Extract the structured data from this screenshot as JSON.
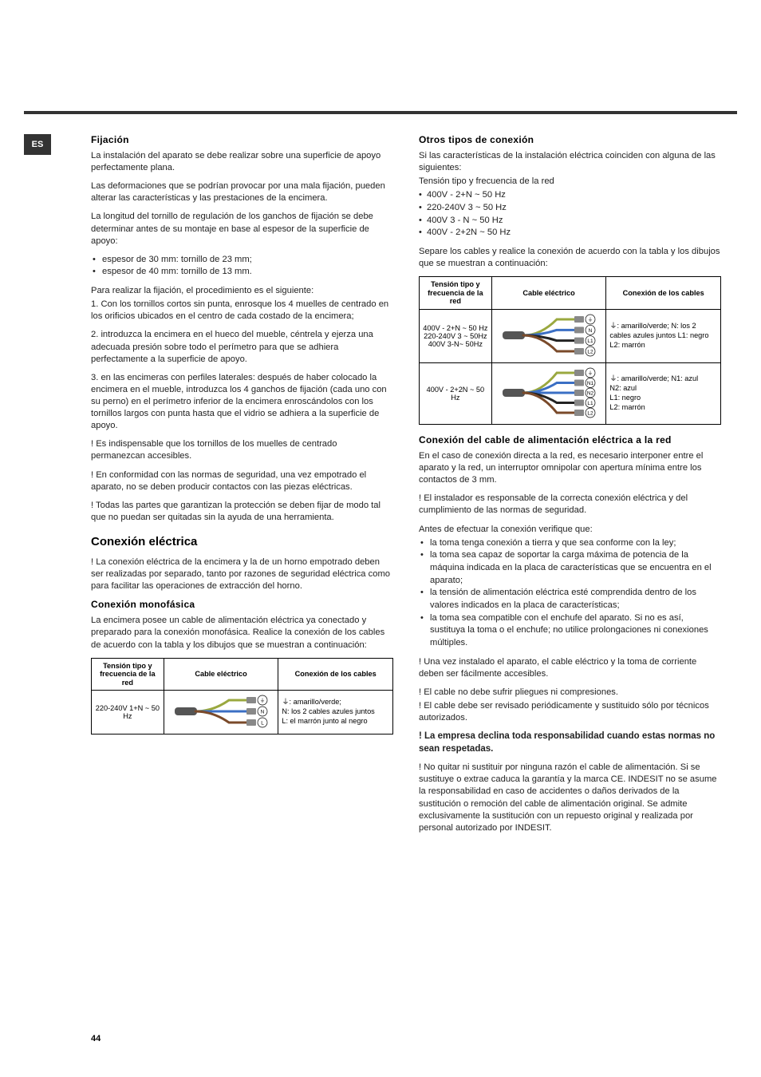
{
  "lang": "ES",
  "pageNumber": "44",
  "left": {
    "h_fijacion": "Fijación",
    "p1": "La instalación del aparato se debe realizar sobre una superficie de apoyo perfectamente plana.",
    "p2": "Las deformaciones que se podrían provocar por una mala fijación, pueden alterar las características y las prestaciones de la encimera.",
    "p3": "La longitud del tornillo de regulación de los ganchos de fijación se debe determinar antes de su montaje en base al espesor de la superficie de apoyo:",
    "li1": "espesor de 30 mm: tornillo de 23 mm;",
    "li2": "espesor de 40 mm: tornillo de 13 mm.",
    "p4": "Para realizar la fijación, el procedimiento es el siguiente:",
    "p5": "1. Con los tornillos cortos sin punta, enrosque los 4 muelles de centrado en los orificios ubicados en el centro de cada costado de la encimera;",
    "p6": "2. introduzca la encimera en el hueco del mueble, céntrela y ejerza una adecuada presión sobre todo el perímetro para que se adhiera perfectamente a la superficie de apoyo.",
    "p7": "3. en las encimeras con perfiles laterales: después de haber colocado la encimera en el mueble, introduzca los 4 ganchos de fijación (cada uno con su perno) en el perímetro inferior de la encimera enroscándolos con los tornillos largos con punta hasta que el vidrio se adhiera a la superficie de apoyo.",
    "w1": "! Es indispensable que los tornillos de los muelles de centrado permanezcan accesibles.",
    "w2": "! En conformidad con las normas de seguridad, una vez empotrado el aparato, no se deben producir contactos con las piezas eléctricas.",
    "w3": "! Todas las partes que garantizan la protección se deben fijar de modo tal que no puedan ser quitadas sin la ayuda de una herramienta.",
    "h_conexion": "Conexión eléctrica",
    "p8": "! La conexión eléctrica de la encimera y la de un horno empotrado deben ser realizadas por separado, tanto por razones de seguridad eléctrica como para facilitar las operaciones de extracción del horno.",
    "h_mono": "Conexión monofásica",
    "p9": "La encimera posee un cable de alimentación eléctrica ya conectado y preparado para la conexión monofásica. Realice la conexión de los cables de acuerdo con la tabla y los dibujos que se muestran a continuación:",
    "table1": {
      "th1": "Tensión tipo y frecuencia de la red",
      "th2": "Cable eléctrico",
      "th3": "Conexión de los cables",
      "row1_freq": "220-240V 1+N ~ 50 Hz",
      "row1_conn": "⏚: amarillo/verde;\nN: los 2 cables azules juntos\nL: el marrón junto al negro"
    }
  },
  "right": {
    "h_otros": "Otros tipos de conexión",
    "p1": "Si las características de la instalación eléctrica coinciden con alguna de las siguientes:",
    "p2": "Tensión tipo y frecuencia de la red",
    "li1": "400V - 2+N ~ 50 Hz",
    "li2": "220-240V 3 ~ 50 Hz",
    "li3": "400V 3 - N ~ 50 Hz",
    "li4": "400V - 2+2N ~ 50 Hz",
    "p3": "Separe los cables y realice la conexión de acuerdo con la tabla y los dibujos que se muestran a continuación:",
    "table2": {
      "th1": "Tensión tipo y frecuencia de la red",
      "th2": "Cable eléctrico",
      "th3": "Conexión de los cables",
      "row1_freq": "400V - 2+N ~ 50 Hz\n220-240V 3 ~ 50Hz\n400V 3-N~ 50Hz",
      "row1_conn": "⏚: amarillo/verde; N: los 2 cables azules juntos L1: negro L2: marrón",
      "row2_freq": "400V - 2+2N ~ 50 Hz",
      "row2_conn": "⏚: amarillo/verde; N1: azul\nN2: azul\nL1: negro\nL2: marrón"
    },
    "h_red": "Conexión del cable de alimentación eléctrica a la red",
    "p4": "En el caso de conexión directa a la red, es necesario interponer entre el aparato y la red, un interruptor omnipolar con apertura mínima entre los contactos de 3 mm.",
    "w1": "! El instalador es responsable de la correcta conexión eléctrica y del cumplimiento de las normas de seguridad.",
    "p5": "Antes de efectuar la conexión verifique que:",
    "li_a": "la toma tenga conexión a tierra y que sea conforme con la ley;",
    "li_b": "la toma sea capaz de soportar la carga máxima de potencia de la máquina indicada en la placa de características que se encuentra en el aparato;",
    "li_c": "la tensión de alimentación eléctrica esté comprendida dentro de los valores indicados en la placa de características;",
    "li_d": "la toma sea compatible con el enchufe del aparato. Si no es así, sustituya la toma o el enchufe; no utilice prolongaciones ni conexiones múltiples.",
    "w2": "! Una vez instalado el aparato, el cable eléctrico y la toma de corriente deben ser fácilmente accesibles.",
    "w3": "! El cable no debe sufrir pliegues ni compresiones.",
    "w4": "! El cable debe ser revisado periódicamente y sustituido sólo por técnicos autorizados.",
    "w5": "! La empresa declina toda responsabilidad cuando estas normas no sean respetadas.",
    "w6": "! No quitar ni sustituir por ninguna razón el cable de alimentación. Si se sustituye o extrae caduca la garantía y la marca CE. INDESIT no se asume la responsabilidad en caso de accidentes o daños derivados de la sustitución o remoción del cable de alimentación original. Se admite exclusivamente la sustitución con un repuesto original y realizada por personal autorizado por INDESIT."
  },
  "diagrams": {
    "labels3": [
      "⏚",
      "N",
      "L"
    ],
    "labels4": [
      "⏚",
      "N",
      "L1",
      "L2"
    ],
    "labels5": [
      "⏚",
      "N1",
      "N2",
      "L1",
      "L2"
    ],
    "colors3": [
      "#9aa83f",
      "#3b6fc4",
      "#7a4a2a"
    ],
    "colors4": [
      "#9aa83f",
      "#3b6fc4",
      "#222",
      "#7a4a2a"
    ],
    "colors5": [
      "#9aa83f",
      "#3b6fc4",
      "#3b6fc4",
      "#222",
      "#7a4a2a"
    ]
  }
}
